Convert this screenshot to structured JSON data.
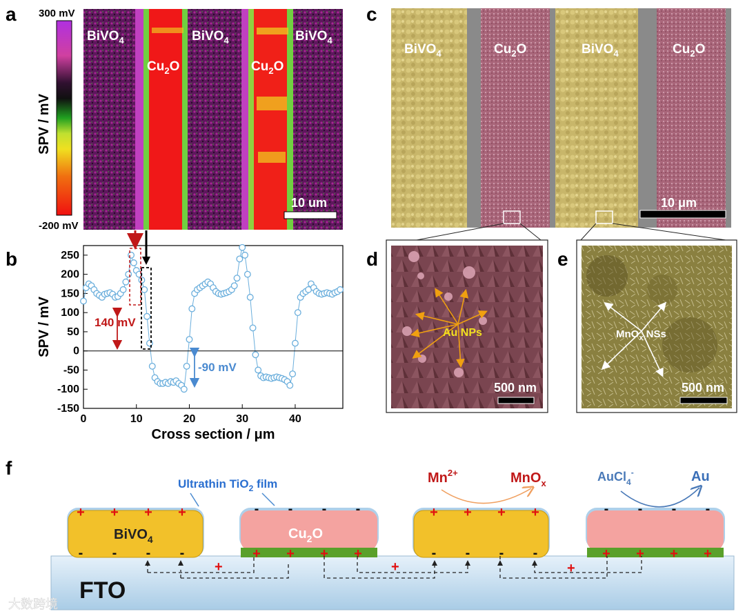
{
  "panels": {
    "a": "a",
    "b": "b",
    "c": "c",
    "d": "d",
    "e": "e",
    "f": "f"
  },
  "panel_a": {
    "colorbar_title": "SPV / mV",
    "colorbar_max": "300 mV",
    "colorbar_min": "-200 mV",
    "bivo4_labels": [
      "BiVO",
      "BiVO",
      "BiVO"
    ],
    "bivo4_subscript": "4",
    "cu2o_labels": [
      "Cu",
      "Cu"
    ],
    "cu2o_sub": "2",
    "cu2o_tail": "O",
    "scalebar": "10 um",
    "colors": {
      "cu2o": "#f01818",
      "bivo4": "#8a1a7a",
      "background": "#150a1a"
    }
  },
  "panel_c": {
    "labels": [
      "BiVO4",
      "Cu2O",
      "BiVO4",
      "Cu2O"
    ],
    "bivo4_text": "BiVO",
    "bivo4_sub": "4",
    "cu2o_text": "Cu",
    "cu2o_sub": "2",
    "cu2o_tail": "O",
    "scalebar": "10 μm",
    "colors": {
      "bivo4": "#c8b66a",
      "cu2o": "#b06b80",
      "gap": "#8a8a8a"
    }
  },
  "panel_d": {
    "label": "Au NPs",
    "scalebar": "500 nm",
    "colors": {
      "bg": "#7a4550",
      "arrow": "#f0a010"
    }
  },
  "panel_e": {
    "label_main": "MnO",
    "label_sub": "x",
    "label_tail": " NSs",
    "scalebar": "500 nm",
    "colors": {
      "bg": "#8a8040"
    }
  },
  "chart_data": {
    "type": "scatter",
    "title": "",
    "xlabel": "Cross section / μm",
    "ylabel": "SPV / mV",
    "xlim": [
      0,
      49
    ],
    "ylim": [
      -150,
      275
    ],
    "xticks": [
      0,
      10,
      20,
      30,
      40
    ],
    "yticks": [
      -150,
      -100,
      -50,
      0,
      50,
      100,
      150,
      200,
      250
    ],
    "x": [
      0,
      0.5,
      1,
      1.5,
      2,
      2.5,
      3,
      3.5,
      4,
      4.5,
      5,
      5.5,
      6,
      6.5,
      7,
      7.5,
      8,
      8.5,
      9,
      9.5,
      10,
      10.5,
      11,
      11.5,
      12,
      12.5,
      13,
      13.5,
      14,
      14.5,
      15,
      15.5,
      16,
      16.5,
      17,
      17.5,
      18,
      18.5,
      19,
      19.5,
      20,
      20.5,
      21,
      21.5,
      22,
      22.5,
      23,
      23.5,
      24,
      24.5,
      25,
      25.5,
      26,
      26.5,
      27,
      27.5,
      28,
      28.5,
      29,
      29.5,
      30,
      30.5,
      31,
      31.5,
      32,
      32.5,
      33,
      33.5,
      34,
      34.5,
      35,
      35.5,
      36,
      36.5,
      37,
      37.5,
      38,
      38.5,
      39,
      39.5,
      40,
      40.5,
      41,
      41.5,
      42,
      42.5,
      43,
      43.5,
      44,
      44.5,
      45,
      45.5,
      46,
      46.5,
      47,
      47.5,
      48,
      48.5
    ],
    "y": [
      130,
      165,
      175,
      170,
      160,
      150,
      145,
      140,
      148,
      150,
      152,
      148,
      140,
      142,
      150,
      160,
      180,
      200,
      250,
      230,
      210,
      200,
      185,
      160,
      90,
      20,
      -40,
      -70,
      -80,
      -85,
      -85,
      -82,
      -85,
      -80,
      -82,
      -78,
      -85,
      -90,
      -100,
      -40,
      30,
      110,
      150,
      160,
      165,
      170,
      175,
      180,
      175,
      165,
      155,
      150,
      148,
      150,
      152,
      155,
      160,
      170,
      190,
      240,
      270,
      250,
      200,
      140,
      60,
      -10,
      -50,
      -65,
      -70,
      -68,
      -70,
      -72,
      -70,
      -68,
      -70,
      -72,
      -75,
      -80,
      -90,
      -60,
      20,
      100,
      140,
      150,
      155,
      160,
      175,
      165,
      155,
      150,
      148,
      150,
      152,
      150,
      148,
      152,
      155,
      160
    ],
    "annotations": [
      {
        "text": "140 mV",
        "color": "#c01818"
      },
      {
        "text": "-90 mV",
        "color": "#4a8ad0"
      }
    ],
    "marker_color": "#6aaedc"
  },
  "panel_f": {
    "ultrathin_prefix": "Ultrathin TiO",
    "ultrathin_sub": "2",
    "ultrathin_suffix": " film",
    "mn_text": "Mn",
    "mn_sup": "2+",
    "mnox_text": "MnO",
    "mnox_sub": "x",
    "aucl_text": "AuCl",
    "aucl_sub": "4",
    "aucl_sup": "-",
    "au_text": "Au",
    "bivo4_text": "BiVO",
    "bivo4_sub": "4",
    "cu2o_text": "Cu",
    "cu2o_sub": "2",
    "cu2o_tail": "O",
    "fto_text": "FTO",
    "plus_sign": "+",
    "minus_sign": "-",
    "colors": {
      "bivo4": "#f2c12a",
      "cu2o": "#f4a3a0",
      "green": "#5aa02a",
      "fto": "#cfe3f3",
      "mn": "#c01818",
      "au": "#3a6fb8",
      "arrow_mn": "#f0a060",
      "arrow_au": "#4a7ab8",
      "ultrathin": "#2a6fd0"
    }
  },
  "watermark": "大数跨境"
}
